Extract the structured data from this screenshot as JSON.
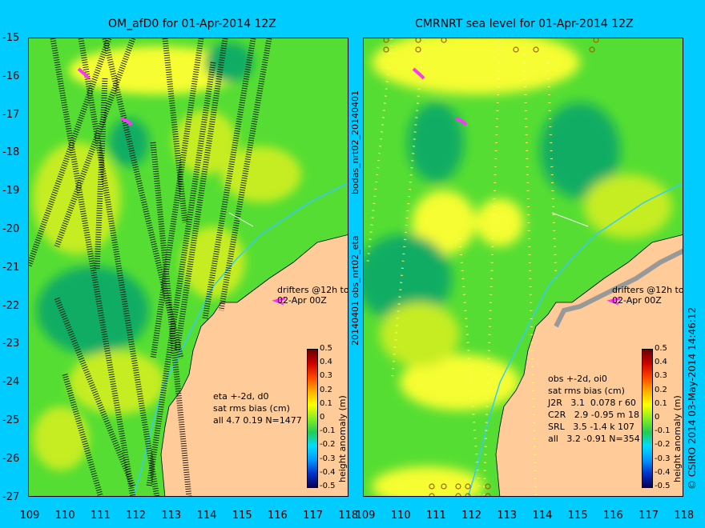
{
  "left_panel": {
    "title": "OM_afD0 for 01-Apr-2014 12Z",
    "annotation": [
      "eta +-2d, d0",
      "sat rms bias (cm)",
      "all 4.7 0.19 N=1477"
    ],
    "drifters": "drifters @12h to\n02-Apr 00Z"
  },
  "right_panel": {
    "title": "CMRNRT sea level  for 01-Apr-2014 12Z",
    "annotation": [
      "obs +-2d, oi0",
      "sat rms bias (cm)",
      "J2R   3.1  0.078 r 60",
      "C2R   2.9 -0.95 m 18",
      "SRL   3.5 -1.4 k 107",
      "all   3.2 -0.91 N=354"
    ],
    "drifters": "drifters @12h to\n02-Apr 00Z"
  },
  "side_label_1": "bodas_nrt02_20140401",
  "side_label_2": "20140401 obs_nrt02_eta",
  "copyright": "© CSIRO 2014  03-May-2014 14:46:12",
  "y_ticks": [
    "-15",
    "-16",
    "-17",
    "-18",
    "-19",
    "-20",
    "-21",
    "-22",
    "-23",
    "-24",
    "-25",
    "-26",
    "-27"
  ],
  "x_ticks_left": [
    "109",
    "110",
    "111",
    "112",
    "113",
    "114",
    "115",
    "116",
    "117",
    "118"
  ],
  "x_ticks_right": [
    "109",
    "110",
    "111",
    "112",
    "113",
    "114",
    "115",
    "116",
    "117",
    "118"
  ],
  "colorbar": {
    "ticks": [
      "0.5",
      "0.4",
      "0.3",
      "0.2",
      "0.1",
      "0",
      "-0.1",
      "-0.2",
      "-0.3",
      "-0.4",
      "-0.5"
    ],
    "label": "height anomaly (m)"
  },
  "colors": {
    "frame": "#00ccff",
    "land": "#ffcc99",
    "ocean_green": "#55dd33",
    "high": "#ffff33",
    "low": "#11aa66"
  },
  "chart_data": {
    "type": "heatmap",
    "x_range": [
      109,
      118
    ],
    "y_range": [
      -27,
      -15
    ],
    "value_range": [
      -0.5,
      0.5
    ]
  }
}
